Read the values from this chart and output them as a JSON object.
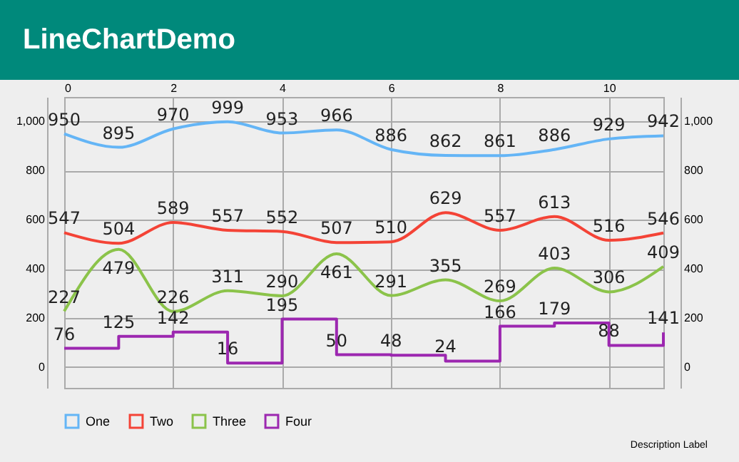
{
  "chart_data": {
    "type": "line",
    "title": "LineChartDemo",
    "annotations": [
      "Description Label"
    ],
    "x": [
      0,
      1,
      2,
      3,
      4,
      5,
      6,
      7,
      8,
      9,
      10,
      11
    ],
    "series": [
      {
        "name": "One",
        "color": "#64b5f6",
        "type": "line",
        "values": [
          950,
          895,
          970,
          999,
          953,
          966,
          886,
          862,
          861,
          886,
          929,
          942
        ]
      },
      {
        "name": "Two",
        "color": "#f44336",
        "type": "line",
        "values": [
          547,
          504,
          589,
          557,
          552,
          507,
          510,
          629,
          557,
          613,
          516,
          546
        ]
      },
      {
        "name": "Three",
        "color": "#8bc34a",
        "type": "line",
        "values": [
          227,
          479,
          226,
          311,
          290,
          461,
          291,
          355,
          269,
          403,
          306,
          409
        ]
      },
      {
        "name": "Four",
        "color": "#9c27b0",
        "type": "step",
        "values": [
          76,
          125,
          142,
          16,
          195,
          50,
          48,
          24,
          166,
          179,
          88,
          141
        ]
      }
    ],
    "xlim": [
      0,
      11
    ],
    "xticks": [
      0,
      2,
      4,
      6,
      8,
      10
    ],
    "ylim": [
      -85,
      1100
    ],
    "yticks": [
      0,
      200,
      400,
      600,
      800,
      {
        "value": 1000,
        "label": "1,000"
      }
    ],
    "y2lim": [
      -85,
      1100
    ],
    "y2ticks": [
      0,
      200,
      400,
      600,
      800,
      {
        "value": 1000,
        "label": "1,000"
      }
    ],
    "grid": true,
    "legend": "bottom left",
    "marker": "none",
    "data_labels": true
  }
}
